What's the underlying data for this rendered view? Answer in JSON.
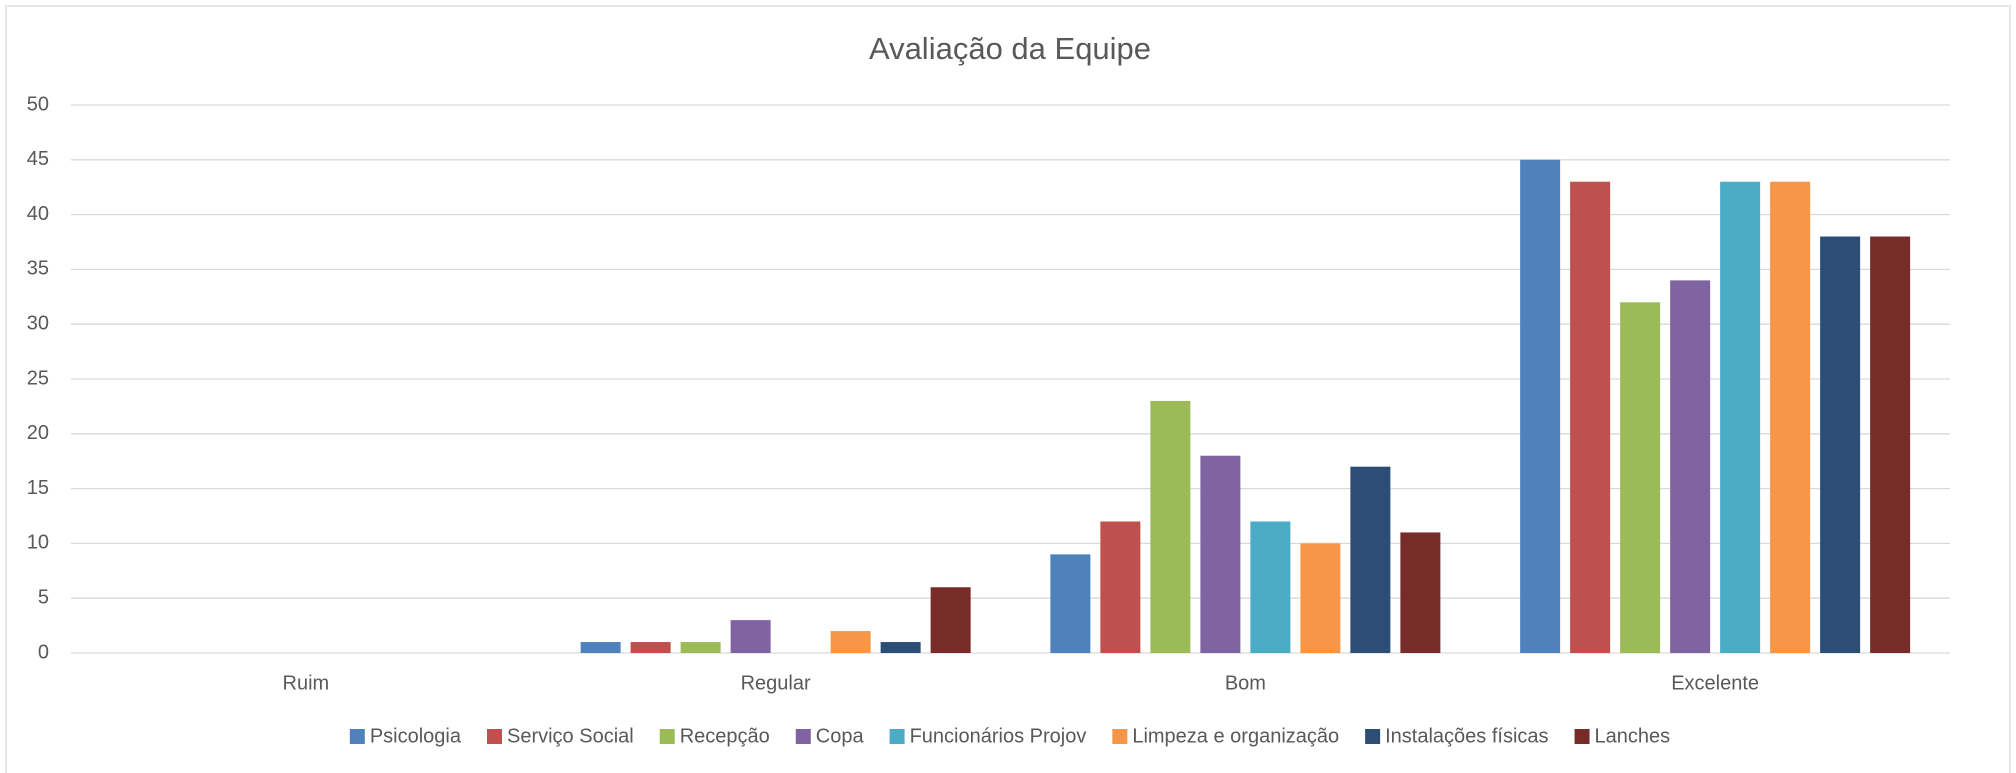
{
  "chart_data": {
    "type": "bar",
    "title": "Avaliação da Equipe",
    "categories": [
      "Ruim",
      "Regular",
      "Bom",
      "Excelente"
    ],
    "series": [
      {
        "name": "Psicologia",
        "color": "#4f81bd",
        "values": [
          0,
          1,
          9,
          45
        ]
      },
      {
        "name": "Serviço Social",
        "color": "#c0504d",
        "values": [
          0,
          1,
          12,
          43
        ]
      },
      {
        "name": "Recepção",
        "color": "#9bbb59",
        "values": [
          0,
          1,
          23,
          32
        ]
      },
      {
        "name": "Copa",
        "color": "#8064a2",
        "values": [
          0,
          3,
          18,
          34
        ]
      },
      {
        "name": "Funcionários Projov",
        "color": "#4bacc6",
        "values": [
          0,
          0,
          12,
          43
        ]
      },
      {
        "name": "Limpeza e organização",
        "color": "#f79646",
        "values": [
          0,
          2,
          10,
          43
        ]
      },
      {
        "name": "Instalações físicas",
        "color": "#2c4d75",
        "values": [
          0,
          1,
          17,
          38
        ]
      },
      {
        "name": "Lanches",
        "color": "#772c2a",
        "values": [
          0,
          6,
          11,
          38
        ]
      }
    ],
    "ylim": [
      0,
      50
    ],
    "yticks": [
      0,
      5,
      10,
      15,
      20,
      25,
      30,
      35,
      40,
      45,
      50
    ],
    "grid": true,
    "legend": "bottom"
  }
}
